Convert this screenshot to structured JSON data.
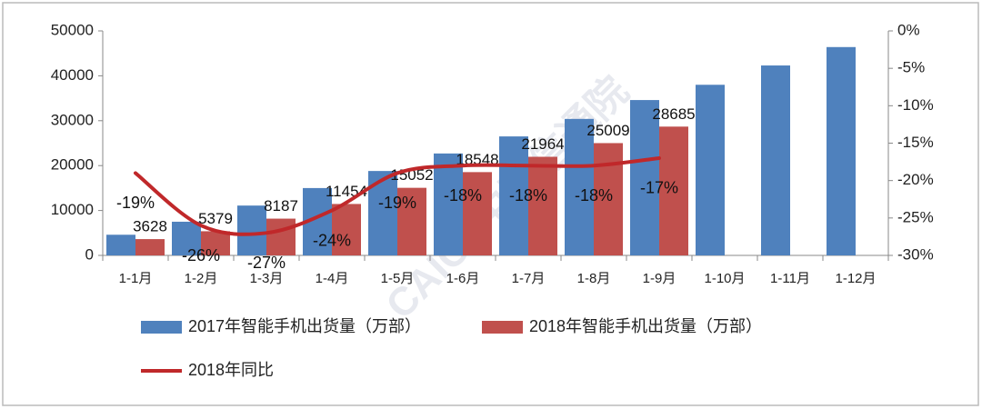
{
  "chart_data": {
    "type": "bar",
    "categories": [
      "1-1月",
      "1-2月",
      "1-3月",
      "1-4月",
      "1-5月",
      "1-6月",
      "1-7月",
      "1-8月",
      "1-9月",
      "1-10月",
      "1-11月",
      "1-12月"
    ],
    "series": [
      {
        "name": "2017年智能手机出货量（万部）",
        "type": "bar",
        "color": "#4f81bd",
        "values": [
          4600,
          7500,
          11100,
          15000,
          18800,
          22700,
          26500,
          30400,
          34600,
          38000,
          42300,
          46400
        ]
      },
      {
        "name": "2018年智能手机出货量（万部）",
        "type": "bar",
        "color": "#c0504d",
        "values": [
          3628,
          5379,
          8187,
          11454,
          15052,
          18548,
          21964,
          25009,
          28685,
          null,
          null,
          null
        ],
        "show_labels": true
      },
      {
        "name": "2018年同比",
        "type": "line",
        "axis": "y2",
        "color": "#c0282a",
        "values": [
          -19,
          -26,
          -27,
          -24,
          -19,
          -18,
          -18,
          -18,
          -17,
          null,
          null,
          null
        ],
        "value_labels": [
          "-19%",
          "-26%",
          "-27%",
          "-24%",
          "-19%",
          "-18%",
          "-18%",
          "-18%",
          "-17%",
          null,
          null,
          null
        ]
      }
    ],
    "ylim": [
      0,
      50000
    ],
    "yticks": [
      0,
      10000,
      20000,
      30000,
      40000,
      50000
    ],
    "y2lim": [
      -30,
      0
    ],
    "y2ticks": [
      {
        "value": -30,
        "label": "-30%"
      },
      {
        "value": -25,
        "label": "-25%"
      },
      {
        "value": -20,
        "label": "-20%"
      },
      {
        "value": -15,
        "label": "-15%"
      },
      {
        "value": -10,
        "label": "-10%"
      },
      {
        "value": -5,
        "label": "-5%"
      },
      {
        "value": 0,
        "label": "0%"
      }
    ],
    "watermark": "CAICT中国信通院"
  }
}
